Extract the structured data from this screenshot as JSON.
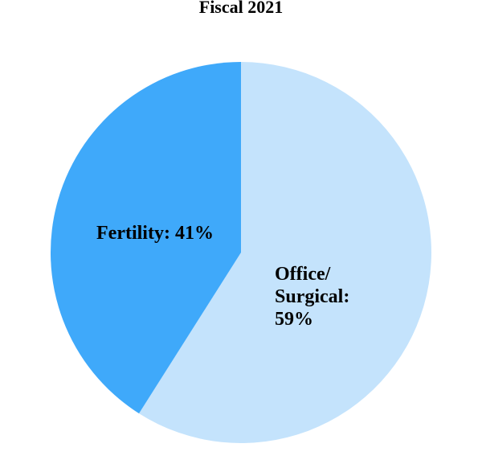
{
  "chart_data": {
    "type": "pie",
    "title": "Fiscal 2021",
    "legend": "none",
    "labels_position": "inside",
    "start_angle_deg": 0,
    "direction": "clockwise",
    "background_color": "#ffffff",
    "label_text_color": "#000000",
    "slices": [
      {
        "id": "office-surgical",
        "label": "Office/Surgical",
        "value": 59,
        "unit": "%",
        "color": "#C4E3FC",
        "label_text": "Office/\nSurgical:\n59%"
      },
      {
        "id": "fertility",
        "label": "Fertility",
        "value": 41,
        "unit": "%",
        "color": "#3FA9FA",
        "label_text": "Fertility: 41%"
      }
    ]
  }
}
